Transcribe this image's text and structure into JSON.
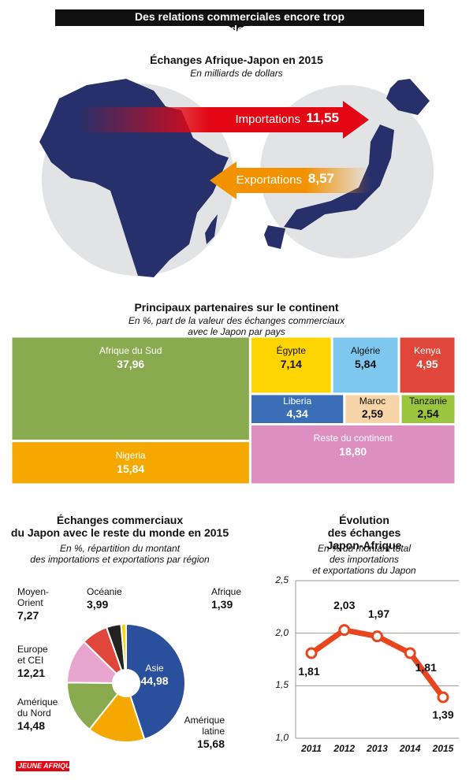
{
  "header": {
    "title": "Des relations commerciales encore trop modestes"
  },
  "chart_data": [
    {
      "type": "arrows",
      "title": "Échanges Afrique-Japon en 2015",
      "subtitle": "En milliards de dollars",
      "categories": [
        "Importations",
        "Exportations"
      ],
      "values": [
        11.55,
        8.57
      ],
      "value_labels": [
        "11,55",
        "8,57"
      ],
      "colors": [
        "#e30613",
        "#f39200"
      ]
    },
    {
      "type": "treemap",
      "title": "Principaux partenaires sur le continent",
      "subtitle": "En %, part de la valeur des échanges commerciaux avec le Japon par pays",
      "categories": [
        "Afrique du Sud",
        "Nigeria",
        "Égypte",
        "Algérie",
        "Kenya",
        "Liberia",
        "Maroc",
        "Tanzanie",
        "Reste du continent"
      ],
      "values": [
        37.96,
        15.84,
        7.14,
        5.84,
        4.95,
        4.34,
        2.59,
        2.54,
        18.8
      ],
      "value_labels": [
        "37,96",
        "15,84",
        "7,14",
        "5,84",
        "4,95",
        "4,34",
        "2,59",
        "2,54",
        "18,80"
      ],
      "colors": [
        "#8aaa4f",
        "#f5a800",
        "#ffd500",
        "#7ec8ef",
        "#e0463a",
        "#3a6fb7",
        "#f8d5a8",
        "#9bc53d",
        "#dc8fc0"
      ]
    },
    {
      "type": "pie",
      "title": "Échanges commerciaux\ndu Japon avec le reste du monde en 2015",
      "subtitle": "En %, répartition du montant\ndes importations et exportations par région",
      "categories": [
        "Asie",
        "Amérique\nlatine",
        "Amérique\ndu Nord",
        "Europe\net CEI",
        "Moyen-\nOrient",
        "Océanie",
        "Afrique"
      ],
      "values": [
        44.98,
        15.68,
        14.48,
        12.21,
        7.27,
        3.99,
        1.39
      ],
      "value_labels": [
        "44,98",
        "15,68",
        "14,48",
        "12,21",
        "7,27",
        "3,99",
        "1,39"
      ],
      "colors": [
        "#2a4f9c",
        "#f5a800",
        "#8aaa4f",
        "#e8a6cf",
        "#e0463a",
        "#222222",
        "#ffd500"
      ]
    },
    {
      "type": "line",
      "title": "Évolution\ndes échanges Japon-Afrique",
      "subtitle": "En % du montant total des importations\net exportations du Japon",
      "categories": [
        "2011",
        "2012",
        "2013",
        "2014",
        "2015"
      ],
      "values": [
        1.81,
        2.03,
        1.97,
        1.81,
        1.39
      ],
      "value_labels": [
        "1,81",
        "2,03",
        "1,97",
        "1,81",
        "1,39"
      ],
      "color": "#e8461e",
      "ylim": [
        1.0,
        2.5
      ],
      "yticks": [
        {
          "value": 1.0,
          "label": "1,0"
        },
        {
          "value": 1.5,
          "label": "1,5"
        },
        {
          "value": 2.0,
          "label": "2,0"
        },
        {
          "value": 2.5,
          "label": "2,5"
        }
      ],
      "grid": true
    }
  ],
  "brand": "JEUNE AFRIQUE"
}
